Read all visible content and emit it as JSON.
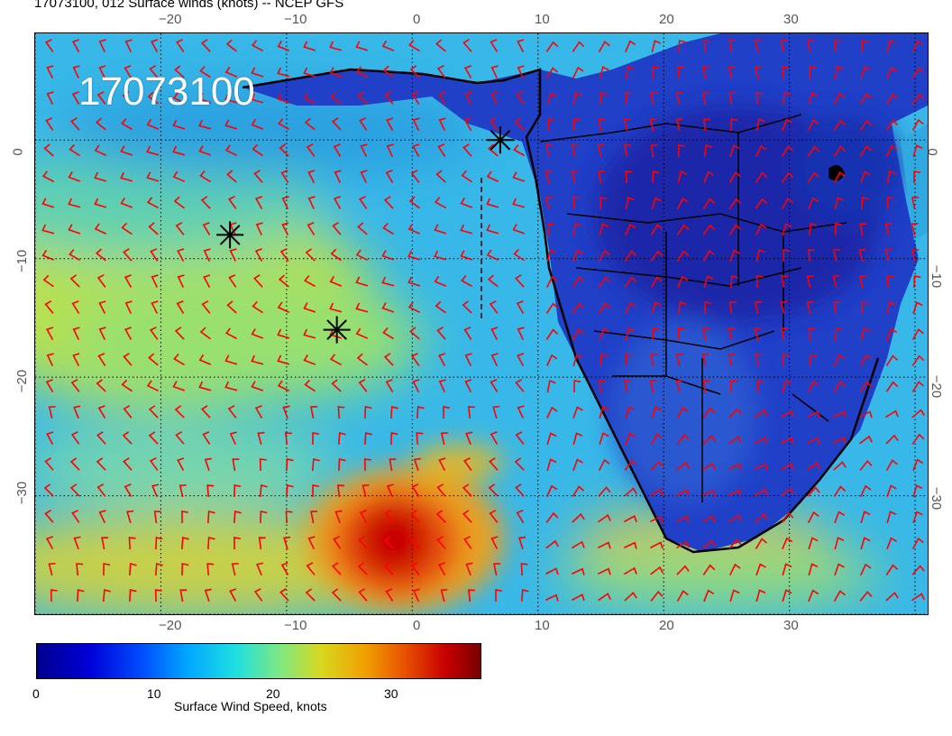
{
  "title": "17073100, 012 Surface winds (knots) -- NCEP GFS",
  "stamp": "17073100",
  "map": {
    "lon_range": [
      -30,
      41
    ],
    "lat_range": [
      -40,
      9
    ],
    "grid_step_deg": 10,
    "top_ticks": [
      "−20",
      "−10",
      "0",
      "10",
      "20",
      "30"
    ],
    "bottom_ticks": [
      "−20",
      "−10",
      "0",
      "10",
      "20",
      "30"
    ],
    "left_ticks": [
      "0",
      "−10",
      "−20",
      "−30"
    ],
    "right_ticks": [
      "0",
      "−10",
      "−20",
      "−30"
    ],
    "barb_color": "#ff0000",
    "markers": [
      {
        "name": "star-marker-1",
        "lon": 7,
        "lat": 0
      },
      {
        "name": "star-marker-2",
        "lon": -14.5,
        "lat": -8
      },
      {
        "name": "star-marker-3",
        "lon": -6,
        "lat": -16
      }
    ]
  },
  "colorbar": {
    "label": "Surface Wind Speed, knots",
    "ticks": [
      "0",
      "10",
      "20",
      "30"
    ],
    "range": [
      0,
      38
    ],
    "colors": [
      "#00008f",
      "#0050ff",
      "#20e0e0",
      "#d8d820",
      "#e85000",
      "#780000"
    ]
  }
}
